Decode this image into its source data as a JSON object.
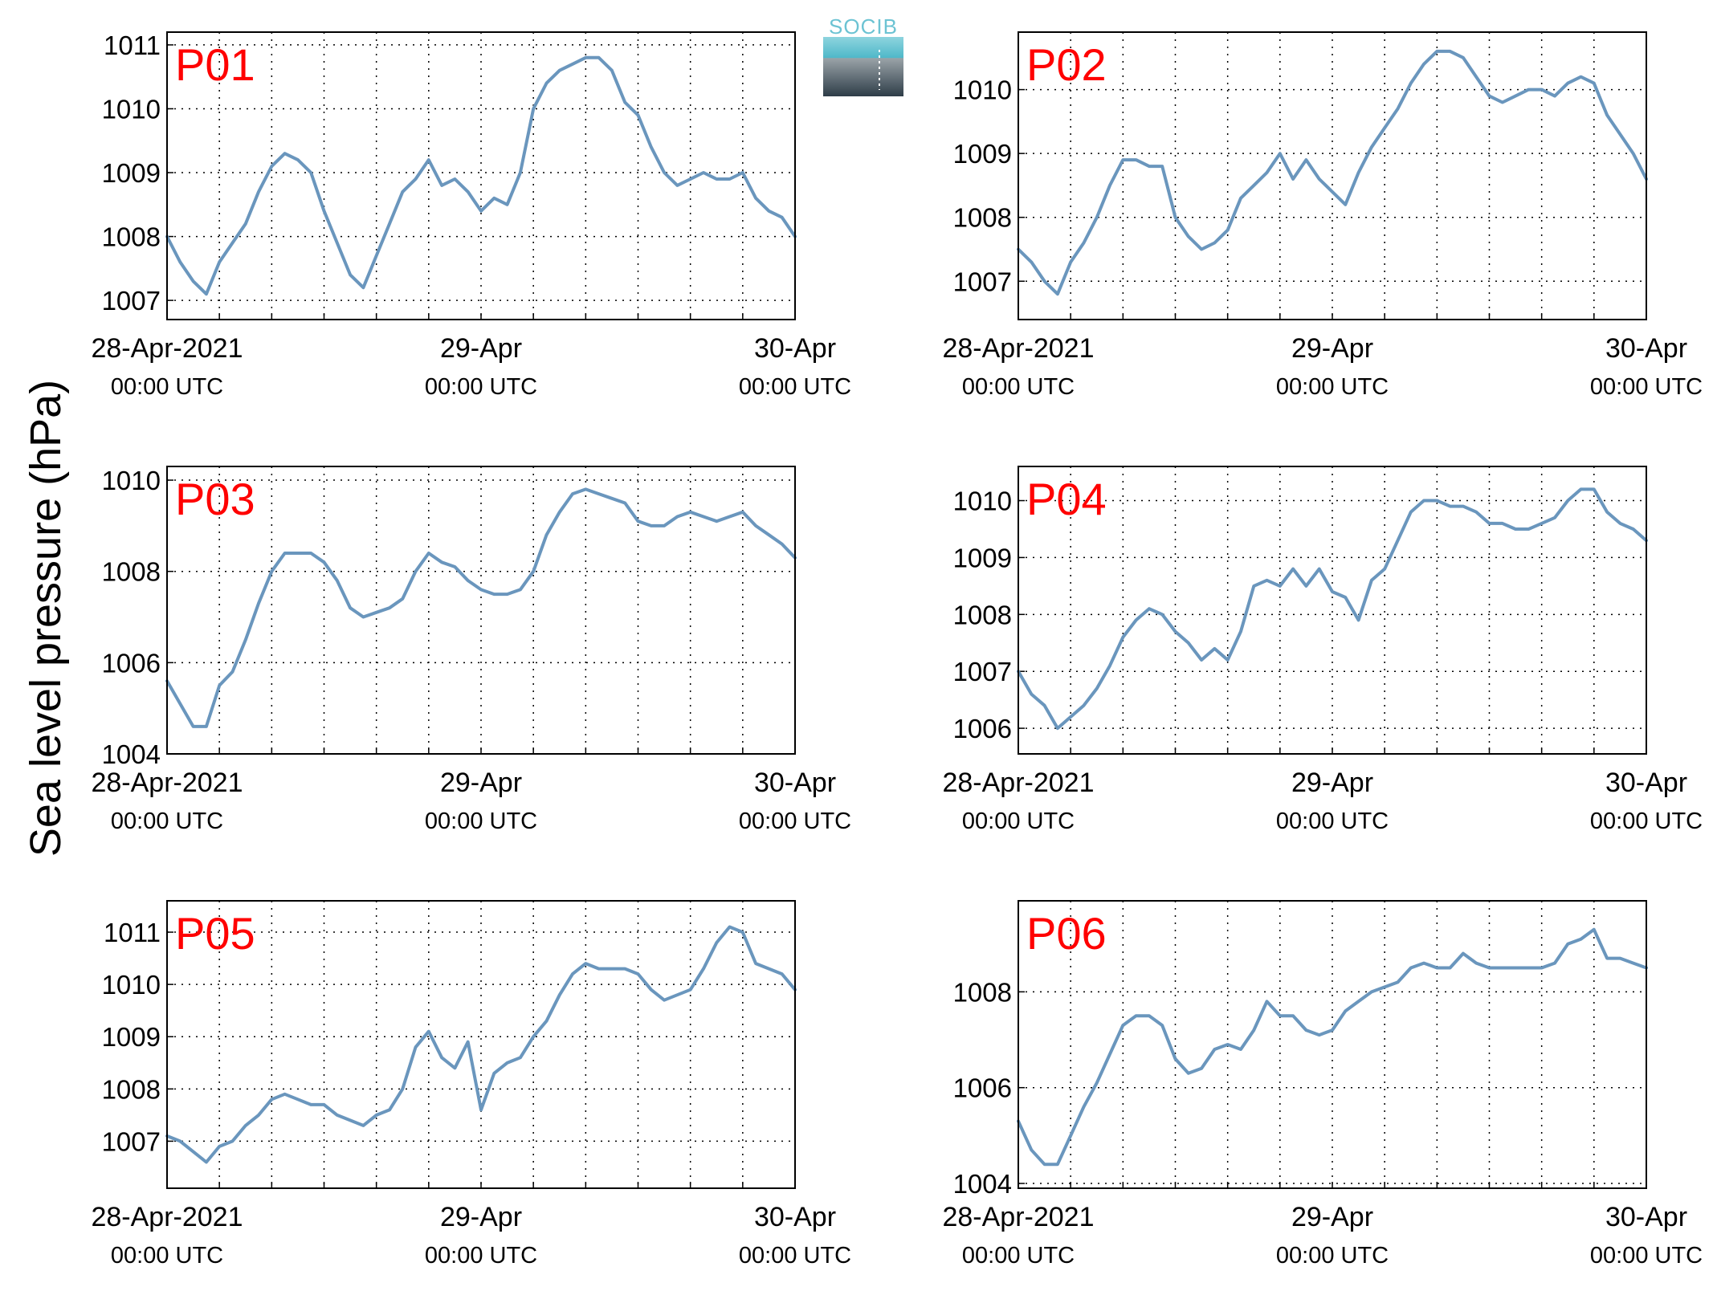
{
  "figure": {
    "ylabel": "Sea level pressure (hPa)",
    "logo_text": "SOCIB",
    "line_color": "#6a96bd",
    "label_color": "#ff0000"
  },
  "chart_data": [
    {
      "type": "line",
      "label": "P01",
      "x_ticks": [
        {
          "x": 0,
          "line1": "28-Apr-2021",
          "line2": "00:00 UTC"
        },
        {
          "x": 24,
          "line1": "29-Apr",
          "line2": "00:00 UTC"
        },
        {
          "x": 48,
          "line1": "30-Apr",
          "line2": "00:00 UTC"
        }
      ],
      "xlim": [
        0,
        48
      ],
      "ylim": [
        1006.7,
        1011.2
      ],
      "y_ticks": [
        1007,
        1008,
        1009,
        1010,
        1011
      ],
      "grid": true,
      "x": [
        0,
        1,
        2,
        3,
        4,
        5,
        6,
        7,
        8,
        9,
        10,
        11,
        12,
        13,
        14,
        15,
        16,
        17,
        18,
        19,
        20,
        21,
        22,
        23,
        24,
        25,
        26,
        27,
        28,
        29,
        30,
        31,
        32,
        33,
        34,
        35,
        36,
        37,
        38,
        39,
        40,
        41,
        42,
        43,
        44,
        45,
        46,
        47,
        48
      ],
      "values": [
        1008.0,
        1007.6,
        1007.3,
        1007.1,
        1007.6,
        1007.9,
        1008.2,
        1008.7,
        1009.1,
        1009.3,
        1009.2,
        1009.0,
        1008.4,
        1007.9,
        1007.4,
        1007.2,
        1007.7,
        1008.2,
        1008.7,
        1008.9,
        1009.2,
        1008.8,
        1008.9,
        1008.7,
        1008.4,
        1008.6,
        1008.5,
        1009.0,
        1010.0,
        1010.4,
        1010.6,
        1010.7,
        1010.8,
        1010.8,
        1010.6,
        1010.1,
        1009.9,
        1009.4,
        1009.0,
        1008.8,
        1008.9,
        1009.0,
        1008.9,
        1008.9,
        1009.0,
        1008.6,
        1008.4,
        1008.3,
        1008.0
      ]
    },
    {
      "type": "line",
      "label": "P02",
      "x_ticks": [
        {
          "x": 0,
          "line1": "28-Apr-2021",
          "line2": "00:00 UTC"
        },
        {
          "x": 24,
          "line1": "29-Apr",
          "line2": "00:00 UTC"
        },
        {
          "x": 48,
          "line1": "30-Apr",
          "line2": "00:00 UTC"
        }
      ],
      "xlim": [
        0,
        48
      ],
      "ylim": [
        1006.4,
        1010.9
      ],
      "y_ticks": [
        1007,
        1008,
        1009,
        1010
      ],
      "grid": true,
      "x": [
        0,
        1,
        2,
        3,
        4,
        5,
        6,
        7,
        8,
        9,
        10,
        11,
        12,
        13,
        14,
        15,
        16,
        17,
        18,
        19,
        20,
        21,
        22,
        23,
        24,
        25,
        26,
        27,
        28,
        29,
        30,
        31,
        32,
        33,
        34,
        35,
        36,
        37,
        38,
        39,
        40,
        41,
        42,
        43,
        44,
        45,
        46,
        47,
        48
      ],
      "values": [
        1007.5,
        1007.3,
        1007.0,
        1006.8,
        1007.3,
        1007.6,
        1008.0,
        1008.5,
        1008.9,
        1008.9,
        1008.8,
        1008.8,
        1008.0,
        1007.7,
        1007.5,
        1007.6,
        1007.8,
        1008.3,
        1008.5,
        1008.7,
        1009.0,
        1008.6,
        1008.9,
        1008.6,
        1008.4,
        1008.2,
        1008.7,
        1009.1,
        1009.4,
        1009.7,
        1010.1,
        1010.4,
        1010.6,
        1010.6,
        1010.5,
        1010.2,
        1009.9,
        1009.8,
        1009.9,
        1010.0,
        1010.0,
        1009.9,
        1010.1,
        1010.2,
        1010.1,
        1009.6,
        1009.3,
        1009.0,
        1008.6
      ]
    },
    {
      "type": "line",
      "label": "P03",
      "x_ticks": [
        {
          "x": 0,
          "line1": "28-Apr-2021",
          "line2": "00:00 UTC"
        },
        {
          "x": 24,
          "line1": "29-Apr",
          "line2": "00:00 UTC"
        },
        {
          "x": 48,
          "line1": "30-Apr",
          "line2": "00:00 UTC"
        }
      ],
      "xlim": [
        0,
        48
      ],
      "ylim": [
        1004.0,
        1010.3
      ],
      "y_ticks": [
        1004,
        1006,
        1008,
        1010
      ],
      "grid": true,
      "x": [
        0,
        1,
        2,
        3,
        4,
        5,
        6,
        7,
        8,
        9,
        10,
        11,
        12,
        13,
        14,
        15,
        16,
        17,
        18,
        19,
        20,
        21,
        22,
        23,
        24,
        25,
        26,
        27,
        28,
        29,
        30,
        31,
        32,
        33,
        34,
        35,
        36,
        37,
        38,
        39,
        40,
        41,
        42,
        43,
        44,
        45,
        46,
        47,
        48
      ],
      "values": [
        1005.6,
        1005.1,
        1004.6,
        1004.6,
        1005.5,
        1005.8,
        1006.5,
        1007.3,
        1008.0,
        1008.4,
        1008.4,
        1008.4,
        1008.2,
        1007.8,
        1007.2,
        1007.0,
        1007.1,
        1007.2,
        1007.4,
        1008.0,
        1008.4,
        1008.2,
        1008.1,
        1007.8,
        1007.6,
        1007.5,
        1007.5,
        1007.6,
        1008.0,
        1008.8,
        1009.3,
        1009.7,
        1009.8,
        1009.7,
        1009.6,
        1009.5,
        1009.1,
        1009.0,
        1009.0,
        1009.2,
        1009.3,
        1009.2,
        1009.1,
        1009.2,
        1009.3,
        1009.0,
        1008.8,
        1008.6,
        1008.3
      ]
    },
    {
      "type": "line",
      "label": "P04",
      "x_ticks": [
        {
          "x": 0,
          "line1": "28-Apr-2021",
          "line2": "00:00 UTC"
        },
        {
          "x": 24,
          "line1": "29-Apr",
          "line2": "00:00 UTC"
        },
        {
          "x": 48,
          "line1": "30-Apr",
          "line2": "00:00 UTC"
        }
      ],
      "xlim": [
        0,
        48
      ],
      "ylim": [
        1005.55,
        1010.6
      ],
      "y_ticks": [
        1006,
        1007,
        1008,
        1009,
        1010
      ],
      "grid": true,
      "x": [
        0,
        1,
        2,
        3,
        4,
        5,
        6,
        7,
        8,
        9,
        10,
        11,
        12,
        13,
        14,
        15,
        16,
        17,
        18,
        19,
        20,
        21,
        22,
        23,
        24,
        25,
        26,
        27,
        28,
        29,
        30,
        31,
        32,
        33,
        34,
        35,
        36,
        37,
        38,
        39,
        40,
        41,
        42,
        43,
        44,
        45,
        46,
        47,
        48
      ],
      "values": [
        1007.0,
        1006.6,
        1006.4,
        1006.0,
        1006.2,
        1006.4,
        1006.7,
        1007.1,
        1007.6,
        1007.9,
        1008.1,
        1008.0,
        1007.7,
        1007.5,
        1007.2,
        1007.4,
        1007.2,
        1007.7,
        1008.5,
        1008.6,
        1008.5,
        1008.8,
        1008.5,
        1008.8,
        1008.4,
        1008.3,
        1007.9,
        1008.6,
        1008.8,
        1009.3,
        1009.8,
        1010.0,
        1010.0,
        1009.9,
        1009.9,
        1009.8,
        1009.6,
        1009.6,
        1009.5,
        1009.5,
        1009.6,
        1009.7,
        1010.0,
        1010.2,
        1010.2,
        1009.8,
        1009.6,
        1009.5,
        1009.3
      ]
    },
    {
      "type": "line",
      "label": "P05",
      "x_ticks": [
        {
          "x": 0,
          "line1": "28-Apr-2021",
          "line2": "00:00 UTC"
        },
        {
          "x": 24,
          "line1": "29-Apr",
          "line2": "00:00 UTC"
        },
        {
          "x": 48,
          "line1": "30-Apr",
          "line2": "00:00 UTC"
        }
      ],
      "xlim": [
        0,
        48
      ],
      "ylim": [
        1006.1,
        1011.6
      ],
      "y_ticks": [
        1007,
        1008,
        1009,
        1010,
        1011
      ],
      "grid": true,
      "x": [
        0,
        1,
        2,
        3,
        4,
        5,
        6,
        7,
        8,
        9,
        10,
        11,
        12,
        13,
        14,
        15,
        16,
        17,
        18,
        19,
        20,
        21,
        22,
        23,
        24,
        25,
        26,
        27,
        28,
        29,
        30,
        31,
        32,
        33,
        34,
        35,
        36,
        37,
        38,
        39,
        40,
        41,
        42,
        43,
        44,
        45,
        46,
        47,
        48
      ],
      "values": [
        1007.1,
        1007.0,
        1006.8,
        1006.6,
        1006.9,
        1007.0,
        1007.3,
        1007.5,
        1007.8,
        1007.9,
        1007.8,
        1007.7,
        1007.7,
        1007.5,
        1007.4,
        1007.3,
        1007.5,
        1007.6,
        1008.0,
        1008.8,
        1009.1,
        1008.6,
        1008.4,
        1008.9,
        1007.6,
        1008.3,
        1008.5,
        1008.6,
        1009.0,
        1009.3,
        1009.8,
        1010.2,
        1010.4,
        1010.3,
        1010.3,
        1010.3,
        1010.2,
        1009.9,
        1009.7,
        1009.8,
        1009.9,
        1010.3,
        1010.8,
        1011.1,
        1011.0,
        1010.4,
        1010.3,
        1010.2,
        1009.9
      ]
    },
    {
      "type": "line",
      "label": "P06",
      "x_ticks": [
        {
          "x": 0,
          "line1": "28-Apr-2021",
          "line2": "00:00 UTC"
        },
        {
          "x": 24,
          "line1": "29-Apr",
          "line2": "00:00 UTC"
        },
        {
          "x": 48,
          "line1": "30-Apr",
          "line2": "00:00 UTC"
        }
      ],
      "xlim": [
        0,
        48
      ],
      "ylim": [
        1003.9,
        1009.9
      ],
      "y_ticks": [
        1004,
        1006,
        1008
      ],
      "grid": true,
      "x": [
        0,
        1,
        2,
        3,
        4,
        5,
        6,
        7,
        8,
        9,
        10,
        11,
        12,
        13,
        14,
        15,
        16,
        17,
        18,
        19,
        20,
        21,
        22,
        23,
        24,
        25,
        26,
        27,
        28,
        29,
        30,
        31,
        32,
        33,
        34,
        35,
        36,
        37,
        38,
        39,
        40,
        41,
        42,
        43,
        44,
        45,
        46,
        47,
        48
      ],
      "values": [
        1005.3,
        1004.7,
        1004.4,
        1004.4,
        1005.0,
        1005.6,
        1006.1,
        1006.7,
        1007.3,
        1007.5,
        1007.5,
        1007.3,
        1006.6,
        1006.3,
        1006.4,
        1006.8,
        1006.9,
        1006.8,
        1007.2,
        1007.8,
        1007.5,
        1007.5,
        1007.2,
        1007.1,
        1007.2,
        1007.6,
        1007.8,
        1008.0,
        1008.1,
        1008.2,
        1008.5,
        1008.6,
        1008.5,
        1008.5,
        1008.8,
        1008.6,
        1008.5,
        1008.5,
        1008.5,
        1008.5,
        1008.5,
        1008.6,
        1009.0,
        1009.1,
        1009.3,
        1008.7,
        1008.7,
        1008.6,
        1008.5
      ]
    }
  ]
}
